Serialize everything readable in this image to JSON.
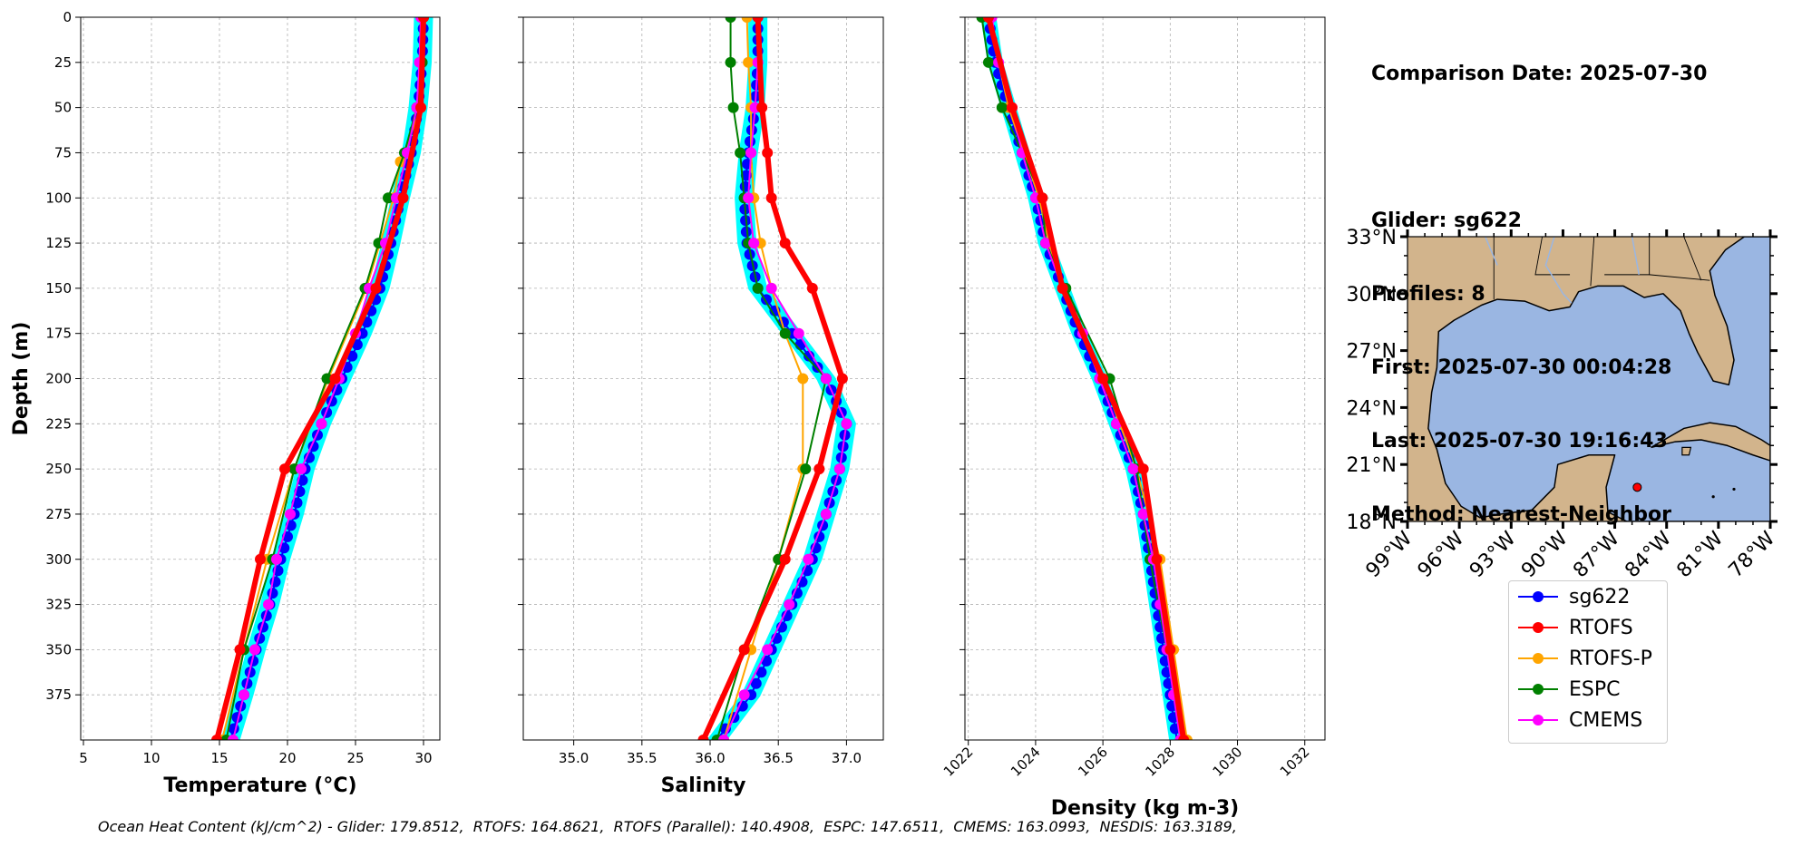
{
  "info": {
    "lines": [
      "Comparison Date: 2025-07-30",
      "",
      "Glider: sg622",
      "Profiles: 8",
      "First: 2025-07-30 00:04:28",
      "Last: 2025-07-30 19:16:43",
      "Method: Nearest-Neighbor"
    ]
  },
  "footer": "Ocean Heat Content (kJ/cm^2) - Glider: 179.8512,  RTOFS: 164.8621,  RTOFS (Parallel): 140.4908,  ESPC: 147.6511,  CMEMS: 163.0993,  NESDIS: 163.3189,",
  "colors": {
    "sg622": "#0000ff",
    "sg622_spread": "#00ffff",
    "RTOFS": "#ff0000",
    "RTOFS-P": "#ffa500",
    "ESPC": "#008000",
    "CMEMS": "#ff00ff",
    "land": "#d2b48c",
    "ocean": "#9ab6e2"
  },
  "legend": [
    {
      "name": "sg622",
      "color": "#0000ff"
    },
    {
      "name": "RTOFS",
      "color": "#ff0000"
    },
    {
      "name": "RTOFS-P",
      "color": "#ffa500"
    },
    {
      "name": "ESPC",
      "color": "#008000"
    },
    {
      "name": "CMEMS",
      "color": "#ff00ff"
    }
  ],
  "chart_data": [
    {
      "type": "line",
      "xlabel": "Temperature (°C)",
      "ylabel": "Depth (m)",
      "xlim": [
        4.8,
        31.2
      ],
      "ylim": [
        400,
        0
      ],
      "xticks": [
        5,
        10,
        15,
        20,
        25,
        30
      ],
      "yticks": [
        0,
        25,
        50,
        75,
        100,
        125,
        150,
        175,
        200,
        225,
        250,
        275,
        300,
        325,
        350,
        375
      ],
      "grid": true,
      "series": [
        {
          "name": "sg622",
          "depth": [
            0,
            25,
            50,
            75,
            100,
            125,
            150,
            175,
            200,
            225,
            250,
            275,
            300,
            325,
            350,
            375,
            400
          ],
          "values": [
            30.0,
            29.9,
            29.6,
            29.1,
            28.3,
            27.6,
            26.8,
            25.5,
            24.0,
            22.5,
            21.3,
            20.5,
            19.5,
            18.7,
            17.7,
            16.8,
            15.8
          ]
        },
        {
          "name": "RTOFS",
          "depth": [
            0,
            50,
            100,
            150,
            200,
            250,
            300,
            350,
            400
          ],
          "values": [
            30.0,
            29.8,
            28.5,
            26.5,
            23.5,
            19.8,
            18.0,
            16.5,
            14.8
          ]
        },
        {
          "name": "RTOFS-P",
          "depth": [
            0,
            50,
            80,
            100,
            125,
            150,
            200,
            250,
            300,
            350,
            400
          ],
          "values": [
            30.0,
            29.8,
            28.3,
            27.8,
            26.8,
            25.8,
            23.0,
            20.5,
            18.5,
            16.8,
            15.2
          ]
        },
        {
          "name": "ESPC",
          "depth": [
            0,
            25,
            50,
            75,
            100,
            125,
            150,
            200,
            250,
            300,
            350,
            400
          ],
          "values": [
            30.0,
            29.9,
            29.5,
            28.6,
            27.4,
            26.7,
            25.7,
            22.9,
            20.5,
            18.9,
            16.8,
            15.5
          ]
        },
        {
          "name": "CMEMS",
          "depth": [
            0,
            25,
            50,
            75,
            100,
            125,
            150,
            175,
            200,
            225,
            250,
            275,
            300,
            325,
            350,
            375,
            400
          ],
          "values": [
            29.8,
            29.7,
            29.5,
            28.8,
            28.0,
            27.2,
            26.0,
            25.0,
            23.8,
            22.5,
            21.0,
            20.2,
            19.2,
            18.6,
            17.6,
            16.8,
            16.0
          ]
        }
      ]
    },
    {
      "type": "line",
      "xlabel": "Salinity",
      "ylabel": "",
      "xlim": [
        34.63,
        37.27
      ],
      "ylim": [
        400,
        0
      ],
      "xticks": [
        35.0,
        35.5,
        36.0,
        36.5,
        37.0
      ],
      "grid": true,
      "series": [
        {
          "name": "sg622",
          "depth": [
            0,
            25,
            50,
            75,
            100,
            125,
            150,
            175,
            200,
            225,
            250,
            275,
            300,
            325,
            350,
            375,
            400
          ],
          "values": [
            36.35,
            36.35,
            36.33,
            36.28,
            36.25,
            36.27,
            36.35,
            36.6,
            36.85,
            37.0,
            36.95,
            36.85,
            36.75,
            36.6,
            36.45,
            36.3,
            36.05
          ]
        },
        {
          "name": "RTOFS",
          "depth": [
            0,
            50,
            75,
            100,
            125,
            150,
            200,
            250,
            300,
            350,
            400
          ],
          "values": [
            36.35,
            36.38,
            36.42,
            36.45,
            36.55,
            36.75,
            36.97,
            36.8,
            36.55,
            36.25,
            35.95
          ]
        },
        {
          "name": "RTOFS-P",
          "depth": [
            0,
            25,
            50,
            75,
            100,
            125,
            150,
            175,
            200,
            250,
            300,
            350,
            400
          ],
          "values": [
            36.27,
            36.28,
            36.3,
            36.3,
            36.32,
            36.37,
            36.45,
            36.55,
            36.68,
            36.68,
            36.5,
            36.3,
            36.1
          ]
        },
        {
          "name": "ESPC",
          "depth": [
            0,
            25,
            50,
            75,
            100,
            125,
            150,
            175,
            200,
            250,
            300,
            350,
            400
          ],
          "values": [
            36.15,
            36.15,
            36.17,
            36.22,
            36.25,
            36.28,
            36.35,
            36.55,
            36.85,
            36.7,
            36.5,
            36.25,
            36.05
          ]
        },
        {
          "name": "CMEMS",
          "depth": [
            0,
            25,
            50,
            75,
            100,
            125,
            150,
            175,
            200,
            225,
            250,
            275,
            300,
            325,
            350,
            375,
            400
          ],
          "values": [
            36.35,
            36.35,
            36.33,
            36.3,
            36.28,
            36.32,
            36.45,
            36.65,
            36.85,
            37.0,
            36.95,
            36.85,
            36.72,
            36.58,
            36.42,
            36.25,
            36.1
          ]
        }
      ]
    },
    {
      "type": "line",
      "xlabel": "Density (kg m-3)",
      "ylabel": "",
      "xlim": [
        1021.9,
        1032.6
      ],
      "ylim": [
        400,
        0
      ],
      "xticks": [
        1022,
        1024,
        1026,
        1028,
        1030,
        1032
      ],
      "grid": true,
      "series": [
        {
          "name": "sg622",
          "depth": [
            0,
            25,
            50,
            75,
            100,
            125,
            150,
            175,
            200,
            225,
            250,
            275,
            300,
            325,
            350,
            375,
            400
          ],
          "values": [
            1022.6,
            1022.8,
            1023.2,
            1023.6,
            1024.0,
            1024.3,
            1024.8,
            1025.3,
            1025.9,
            1026.4,
            1026.9,
            1027.2,
            1027.4,
            1027.6,
            1027.8,
            1028.0,
            1028.2
          ]
        },
        {
          "name": "RTOFS",
          "depth": [
            0,
            50,
            100,
            150,
            200,
            250,
            300,
            350,
            400
          ],
          "values": [
            1022.6,
            1023.3,
            1024.2,
            1024.8,
            1026.0,
            1027.2,
            1027.6,
            1028.0,
            1028.4
          ]
        },
        {
          "name": "RTOFS-P",
          "depth": [
            0,
            50,
            100,
            125,
            150,
            200,
            250,
            300,
            350,
            400
          ],
          "values": [
            1022.6,
            1023.2,
            1024.1,
            1024.4,
            1024.8,
            1026.0,
            1027.0,
            1027.7,
            1028.1,
            1028.5
          ]
        },
        {
          "name": "ESPC",
          "depth": [
            0,
            25,
            50,
            75,
            100,
            125,
            150,
            200,
            250,
            300,
            350,
            400
          ],
          "values": [
            1022.4,
            1022.6,
            1023.0,
            1023.6,
            1024.2,
            1024.3,
            1024.9,
            1026.2,
            1027.0,
            1027.4,
            1027.9,
            1028.3
          ]
        },
        {
          "name": "CMEMS",
          "depth": [
            0,
            25,
            50,
            75,
            100,
            125,
            150,
            175,
            200,
            225,
            250,
            275,
            300,
            325,
            350,
            375,
            400
          ],
          "values": [
            1022.7,
            1022.9,
            1023.3,
            1023.6,
            1024.0,
            1024.3,
            1024.8,
            1025.4,
            1025.9,
            1026.4,
            1026.9,
            1027.2,
            1027.5,
            1027.7,
            1027.9,
            1028.1,
            1028.3
          ]
        }
      ]
    },
    {
      "type": "map",
      "lat_ticks": [
        "33°N",
        "30°N",
        "27°N",
        "24°N",
        "21°N",
        "18°N"
      ],
      "lon_ticks": [
        "99°W",
        "96°W",
        "93°W",
        "90°W",
        "87°W",
        "84°W",
        "81°W",
        "78°W"
      ],
      "extent": {
        "lon": [
          -99,
          -78
        ],
        "lat": [
          18,
          33
        ]
      },
      "marker": {
        "lon": -85.7,
        "lat": 19.8,
        "color": "#ff0000"
      }
    }
  ]
}
